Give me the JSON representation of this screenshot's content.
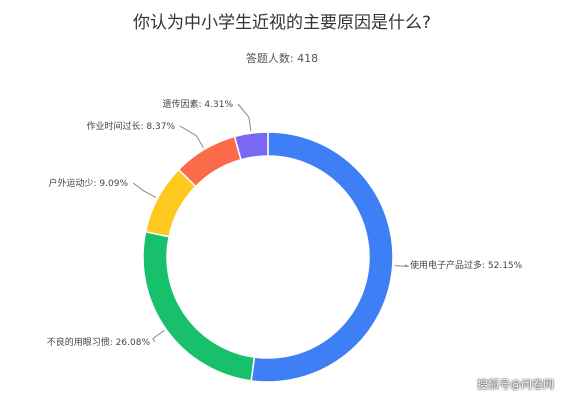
{
  "chart_data": {
    "type": "pie",
    "title": "你认为中小学生近视的主要原因是什么?",
    "subtitle": "答题人数: 418",
    "slices": [
      {
        "label": "使用电子产品过多",
        "value": 52.15,
        "display": "使用电子产品过多: 52.15%",
        "color": "#3f7ff5"
      },
      {
        "label": "不良的用眼习惯",
        "value": 26.08,
        "display": "不良的用眼习惯: 26.08%",
        "color": "#19c06b"
      },
      {
        "label": "户外运动少",
        "value": 9.09,
        "display": "户外运动少: 9.09%",
        "color": "#ffc81f"
      },
      {
        "label": "作业时间过长",
        "value": 8.37,
        "display": "作业时间过长: 8.37%",
        "color": "#fb6b4a"
      },
      {
        "label": "遗传因素",
        "value": 4.31,
        "display": "遗传因素: 4.31%",
        "color": "#7a68f4"
      }
    ]
  },
  "watermark": "搜狐号@问卷网"
}
